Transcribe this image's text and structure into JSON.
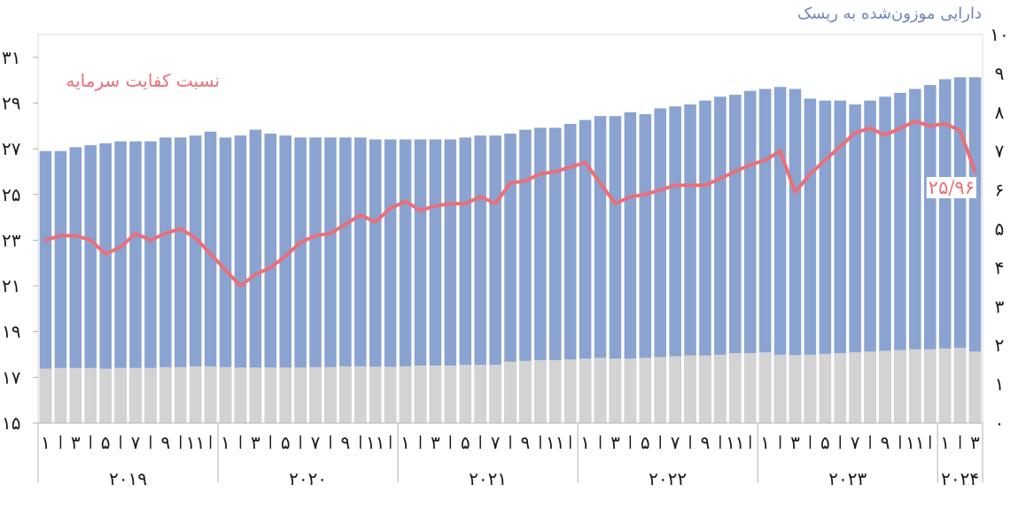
{
  "chart_data": {
    "type": "bar",
    "right_axis_title": "دارایی موزون‌شده به ریسک",
    "line_series_label": "نسبت کفایت سرمایه",
    "end_value_label": "۲۵/۹۶",
    "left_axis": {
      "range": [
        15,
        32
      ],
      "ticks": [
        15,
        17,
        19,
        21,
        23,
        25,
        27,
        29,
        31
      ],
      "tick_labels": [
        "۱۵",
        "۱۷",
        "۱۹",
        "۲۱",
        "۲۳",
        "۲۵",
        "۲۷",
        "۲۹",
        "۳۱"
      ]
    },
    "right_axis": {
      "range": [
        0,
        10
      ],
      "ticks": [
        0,
        1,
        2,
        3,
        4,
        5,
        6,
        7,
        8,
        9,
        10
      ],
      "tick_labels": [
        "۰",
        "۱",
        "۲",
        "۳",
        "۴",
        "۵",
        "۶",
        "۷",
        "۸",
        "۹",
        "۱۰"
      ]
    },
    "years": [
      {
        "label": "۲۰۱۹",
        "months": 12
      },
      {
        "label": "۲۰۲۰",
        "months": 12
      },
      {
        "label": "۲۰۲۱",
        "months": 12
      },
      {
        "label": "۲۰۲۲",
        "months": 12
      },
      {
        "label": "۲۰۲۳",
        "months": 12
      },
      {
        "label": "۲۰۲۴",
        "months": 3
      }
    ],
    "month_tick_labels": [
      "۱",
      "۳",
      "۵",
      "۷",
      "۹",
      "۱۱"
    ],
    "colors": {
      "total_bar": "#8aa3d0",
      "base_bar": "#d3d3d3",
      "line": "#ea6f79"
    },
    "series": [
      {
        "axis": "right",
        "values": [
          7.0,
          7.0,
          7.1,
          7.15,
          7.2,
          7.25,
          7.25,
          7.25,
          7.35,
          7.35,
          7.4,
          7.5,
          7.35,
          7.4,
          7.55,
          7.45,
          7.4,
          7.35,
          7.35,
          7.35,
          7.35,
          7.35,
          7.3,
          7.3,
          7.3,
          7.3,
          7.3,
          7.3,
          7.35,
          7.4,
          7.4,
          7.45,
          7.55,
          7.6,
          7.6,
          7.7,
          7.8,
          7.9,
          7.9,
          8.0,
          7.95,
          8.1,
          8.15,
          8.2,
          8.3,
          8.4,
          8.45,
          8.55,
          8.6,
          8.65,
          8.6,
          8.35,
          8.3,
          8.3,
          8.2,
          8.3,
          8.4,
          8.5,
          8.6,
          8.7,
          8.85,
          8.9,
          8.9
        ]
      },
      {
        "axis": "right",
        "values": [
          1.4,
          1.42,
          1.42,
          1.42,
          1.4,
          1.42,
          1.42,
          1.42,
          1.44,
          1.44,
          1.46,
          1.46,
          1.44,
          1.43,
          1.43,
          1.43,
          1.43,
          1.43,
          1.44,
          1.44,
          1.46,
          1.46,
          1.45,
          1.45,
          1.46,
          1.48,
          1.48,
          1.48,
          1.5,
          1.5,
          1.5,
          1.58,
          1.6,
          1.62,
          1.62,
          1.64,
          1.66,
          1.68,
          1.66,
          1.66,
          1.68,
          1.7,
          1.72,
          1.74,
          1.74,
          1.76,
          1.8,
          1.8,
          1.82,
          1.76,
          1.75,
          1.76,
          1.78,
          1.8,
          1.82,
          1.84,
          1.86,
          1.88,
          1.9,
          1.9,
          1.92,
          1.94,
          1.84
        ]
      },
      {
        "name": "نسبت کفایت سرمایه",
        "axis": "left",
        "values": [
          23.0,
          23.2,
          23.2,
          23.0,
          22.4,
          22.7,
          23.3,
          23.0,
          23.3,
          23.5,
          23.1,
          22.4,
          21.7,
          21.0,
          21.5,
          21.8,
          22.3,
          22.9,
          23.2,
          23.3,
          23.7,
          24.1,
          23.8,
          24.4,
          24.7,
          24.3,
          24.5,
          24.6,
          24.6,
          24.9,
          24.6,
          25.5,
          25.6,
          25.9,
          26.0,
          26.2,
          26.4,
          25.5,
          24.6,
          24.9,
          25.0,
          25.2,
          25.4,
          25.4,
          25.4,
          25.7,
          26.0,
          26.3,
          26.5,
          26.9,
          25.1,
          25.9,
          26.5,
          27.1,
          27.7,
          27.9,
          27.6,
          27.9,
          28.2,
          28.0,
          28.1,
          27.8,
          26.0
        ]
      }
    ]
  }
}
